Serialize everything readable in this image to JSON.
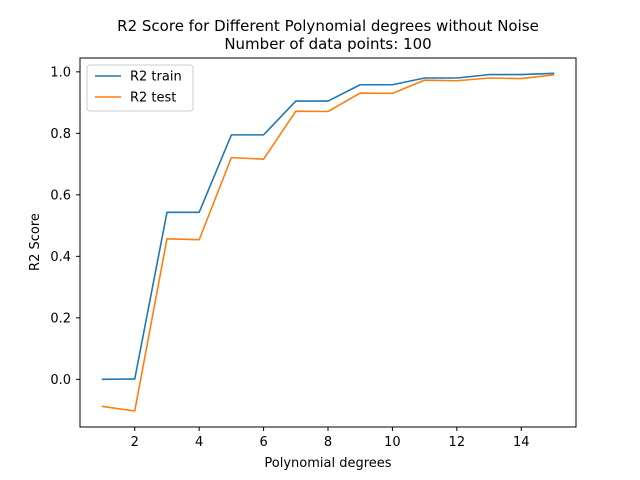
{
  "chart_data": {
    "type": "line",
    "title": "R2 Score for Different Polynomial degrees without Noise",
    "subtitle": "Number of data points: 100",
    "xlabel": "Polynomial degrees",
    "ylabel": "R2 Score",
    "xlim": [
      0.3,
      15.7
    ],
    "ylim": [
      -0.155,
      1.045
    ],
    "x_ticks": [
      2,
      4,
      6,
      8,
      10,
      12,
      14
    ],
    "y_ticks": [
      0.0,
      0.2,
      0.4,
      0.6,
      0.8,
      1.0
    ],
    "grid": false,
    "legend_position": "top-left",
    "x": [
      1,
      2,
      3,
      4,
      5,
      6,
      7,
      8,
      9,
      10,
      11,
      12,
      13,
      14,
      15
    ],
    "series": [
      {
        "name": "R2 train",
        "color": "#1f77b4",
        "values": [
          0.0,
          0.001,
          0.543,
          0.543,
          0.795,
          0.795,
          0.905,
          0.905,
          0.958,
          0.958,
          0.98,
          0.98,
          0.991,
          0.991,
          0.995
        ]
      },
      {
        "name": "R2 test",
        "color": "#ff7f0e",
        "values": [
          -0.088,
          -0.103,
          0.457,
          0.454,
          0.721,
          0.716,
          0.872,
          0.871,
          0.931,
          0.93,
          0.973,
          0.971,
          0.98,
          0.978,
          0.99
        ]
      }
    ]
  }
}
